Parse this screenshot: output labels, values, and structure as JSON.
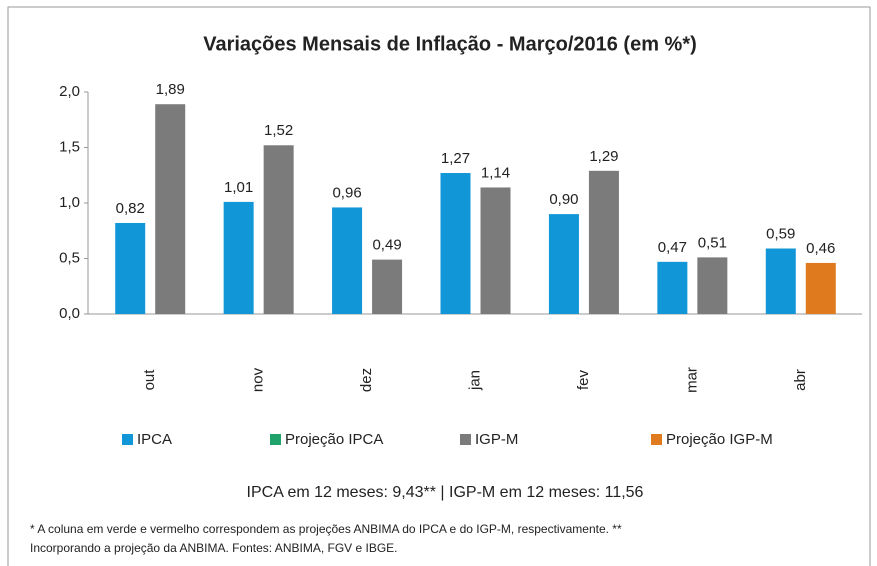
{
  "chart_data": {
    "type": "bar",
    "title": "Variações Mensais de Inflação - Março/2016 (em %*)",
    "categories": [
      "out",
      "nov",
      "dez",
      "jan",
      "fev",
      "mar",
      "abr"
    ],
    "series": [
      {
        "name": "IPCA",
        "color": "#1196d8",
        "values": [
          0.82,
          1.01,
          0.96,
          1.27,
          0.9,
          0.47,
          0.59
        ],
        "value_labels": [
          "0,82",
          "1,01",
          "0,96",
          "1,27",
          "0,90",
          "0,47",
          "0,59"
        ]
      },
      {
        "name": "Projeção IPCA",
        "color": "#20a36a",
        "values": [
          null,
          null,
          null,
          null,
          null,
          null,
          null
        ],
        "value_labels": [
          null,
          null,
          null,
          null,
          null,
          null,
          null
        ]
      },
      {
        "name": "IGP-M",
        "color": "#7b7b7b",
        "values": [
          1.89,
          1.52,
          0.49,
          1.14,
          1.29,
          0.51,
          null
        ],
        "value_labels": [
          "1,89",
          "1,52",
          "0,49",
          "1,14",
          "1,29",
          "0,51",
          null
        ]
      },
      {
        "name": "Projeção IGP-M",
        "color": "#e07a1f",
        "values": [
          null,
          null,
          null,
          null,
          null,
          null,
          0.46
        ],
        "value_labels": [
          null,
          null,
          null,
          null,
          null,
          null,
          "0,46"
        ]
      }
    ],
    "ylim": [
      0,
      2
    ],
    "yticks": [
      {
        "value": 0,
        "label": "0,0"
      },
      {
        "value": 0.5,
        "label": "0,5"
      },
      {
        "value": 1,
        "label": "1,0"
      },
      {
        "value": 1.5,
        "label": "1,5"
      },
      {
        "value": 2,
        "label": "2,0"
      }
    ],
    "grid": false,
    "legend": "bottom",
    "annotations": [
      "IPCA em 12 meses: 9,43** | IGP-M em 12 meses: 11,56"
    ],
    "footnote": [
      "* A coluna em verde e vermelho correspondem as projeções ANBIMA do IPCA e do IGP-M, respectivamente. **",
      "Incorporando a projeção da ANBIMA. Fontes: ANBIMA, FGV e IBGE."
    ]
  }
}
